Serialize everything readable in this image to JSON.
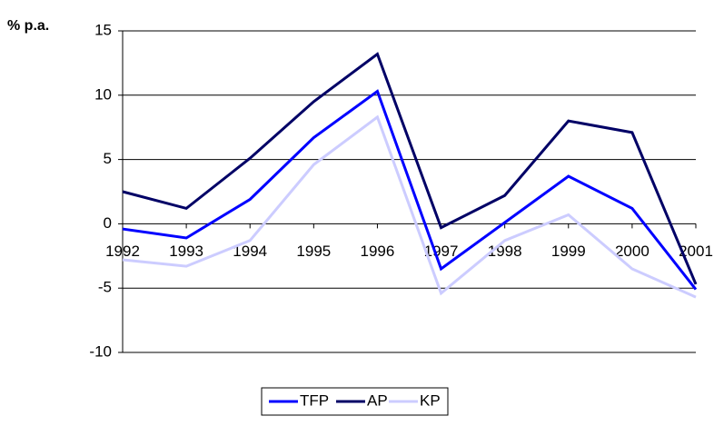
{
  "chart_data": {
    "type": "line",
    "y_label": "% p.a.",
    "categories": [
      "1992",
      "1993",
      "1994",
      "1995",
      "1996",
      "1997",
      "1998",
      "1999",
      "2000",
      "2001"
    ],
    "series": [
      {
        "name": "TFP",
        "color": "#0000ff",
        "values": [
          -0.4,
          -1.1,
          1.9,
          6.7,
          10.3,
          -3.5,
          0.1,
          3.7,
          1.2,
          -5.1
        ]
      },
      {
        "name": "AP",
        "color": "#000066",
        "values": [
          2.5,
          1.2,
          5.1,
          9.5,
          13.2,
          -0.3,
          2.2,
          8.0,
          7.1,
          -4.7
        ]
      },
      {
        "name": "KP",
        "color": "#ccccff",
        "values": [
          -2.8,
          -3.3,
          -1.3,
          4.6,
          8.3,
          -5.4,
          -1.3,
          0.7,
          -3.5,
          -5.7
        ]
      }
    ],
    "ylim": [
      -10,
      15
    ],
    "yticks": [
      -10,
      -5,
      0,
      5,
      10,
      15
    ],
    "grid": true,
    "legend": "bottom"
  }
}
